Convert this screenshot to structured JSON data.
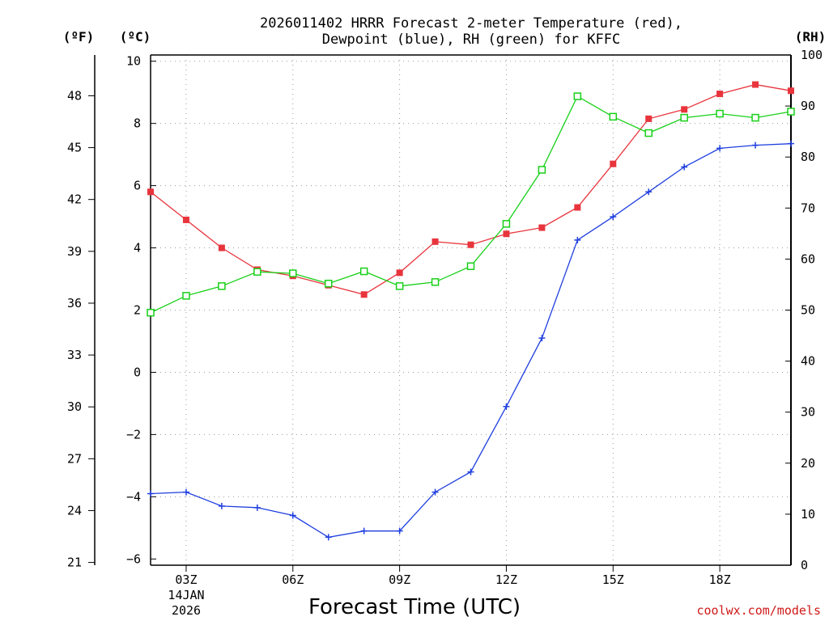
{
  "title_line1": "2026011402 HRRR Forecast 2-meter Temperature (red),",
  "title_line2": "Dewpoint (blue), RH (green) for KFFC",
  "unit_f": "(ºF)",
  "unit_c": "(ºC)",
  "unit_rh": "(RH)",
  "xlabel": "Forecast Time (UTC)",
  "date_line1": "14JAN",
  "date_line2": "2026",
  "credit": "coolwx.com/models",
  "colors": {
    "temperature": "#e8343c",
    "dewpoint": "#1f3fe0",
    "rh": "#18d018"
  },
  "chart_data": {
    "type": "line",
    "title": "2026011402 HRRR Forecast 2-meter Temperature (red), Dewpoint (blue), RH (green) for KFFC",
    "xlabel": "Forecast Time (UTC)",
    "x_hours": [
      2,
      3,
      4,
      5,
      6,
      7,
      8,
      9,
      10,
      11,
      12,
      13,
      14,
      15,
      16,
      17,
      18,
      19,
      20
    ],
    "x_ticks": [
      {
        "hour": 3,
        "label": "03Z"
      },
      {
        "hour": 6,
        "label": "06Z"
      },
      {
        "hour": 9,
        "label": "09Z"
      },
      {
        "hour": 12,
        "label": "12Z"
      },
      {
        "hour": 15,
        "label": "15Z"
      },
      {
        "hour": 18,
        "label": "18Z"
      }
    ],
    "xlim": [
      2,
      20
    ],
    "y_left_c": {
      "label": "(ºC)",
      "lim": [
        -6.2,
        10.2
      ],
      "ticks": [
        -6,
        -4,
        -2,
        0,
        2,
        4,
        6,
        8,
        10
      ]
    },
    "y_left_f": {
      "label": "(ºF)",
      "ticks": [
        21,
        24,
        27,
        30,
        33,
        36,
        39,
        42,
        45,
        48
      ]
    },
    "y_right_rh": {
      "label": "(RH)",
      "lim": [
        0,
        100
      ],
      "ticks": [
        0,
        10,
        20,
        30,
        40,
        50,
        60,
        70,
        80,
        90,
        100
      ]
    },
    "series": [
      {
        "name": "2-meter Temperature",
        "axis": "C",
        "color": "red",
        "marker": "filled-square",
        "values": [
          5.8,
          4.9,
          4.0,
          3.3,
          3.1,
          2.8,
          2.5,
          3.2,
          4.2,
          4.1,
          4.45,
          4.65,
          5.3,
          6.7,
          8.15,
          8.45,
          8.95,
          9.25,
          9.05
        ]
      },
      {
        "name": "Dewpoint",
        "axis": "C",
        "color": "blue",
        "marker": "plus",
        "values": [
          -3.9,
          -3.85,
          -4.3,
          -4.35,
          -4.6,
          -5.3,
          -5.1,
          -5.1,
          -3.85,
          -3.2,
          -1.1,
          1.1,
          4.25,
          5.0,
          5.8,
          6.6,
          7.2,
          7.3,
          7.35
        ]
      },
      {
        "name": "RH",
        "axis": "RH",
        "color": "green",
        "marker": "open-square",
        "values": [
          49.5,
          52.8,
          54.7,
          57.5,
          57.2,
          55.2,
          57.6,
          54.7,
          55.5,
          58.6,
          66.9,
          77.5,
          91.9,
          87.9,
          84.7,
          87.7,
          88.5,
          87.7,
          88.9
        ]
      }
    ]
  }
}
